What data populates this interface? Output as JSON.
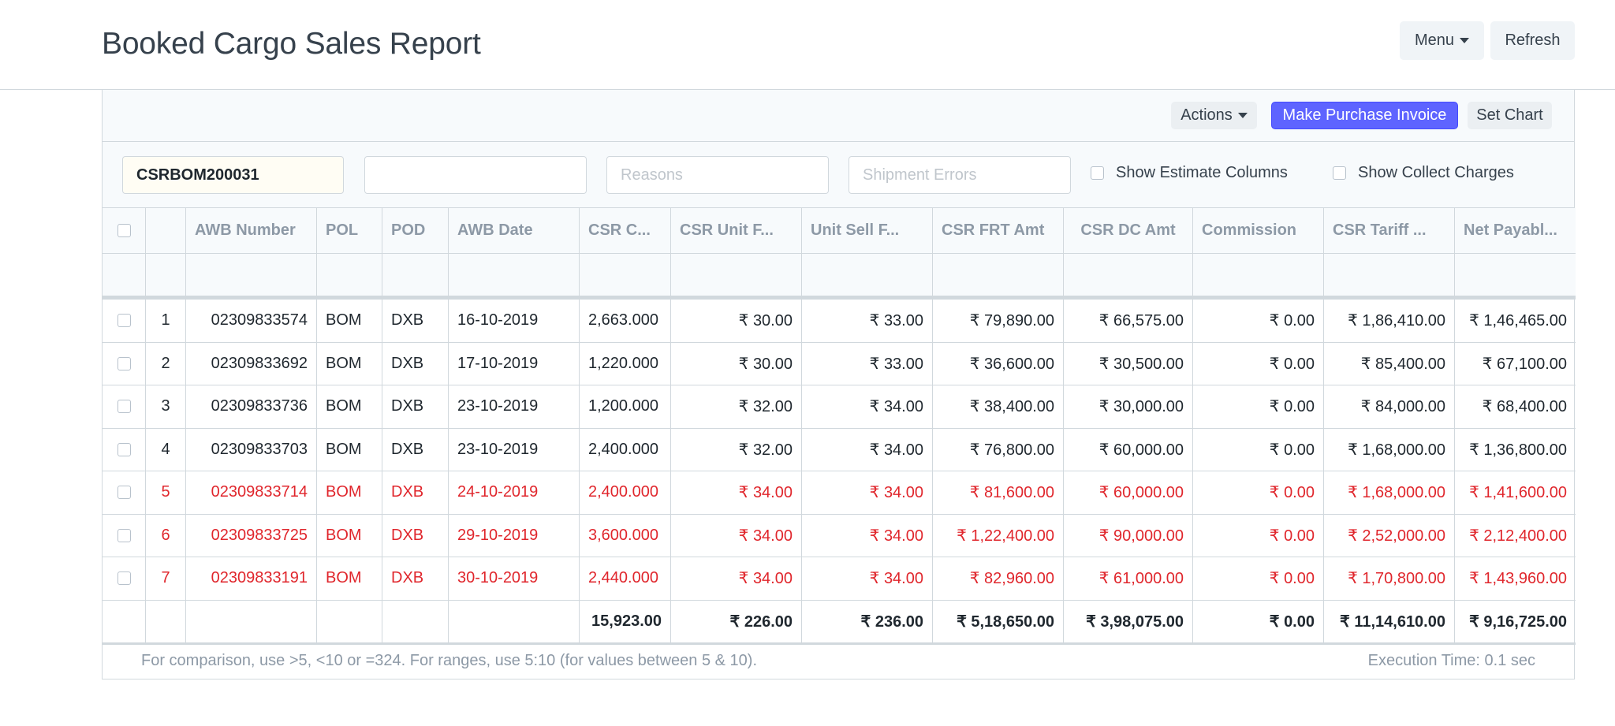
{
  "page": {
    "title": "Booked Cargo Sales Report",
    "menu_label": "Menu",
    "refresh_label": "Refresh"
  },
  "toolbar": {
    "actions_label": "Actions",
    "make_purchase_invoice_label": "Make Purchase Invoice",
    "set_chart_label": "Set Chart"
  },
  "filters": {
    "csr_value": "CSRBOM200031",
    "second_value": "",
    "reasons_placeholder": "Reasons",
    "shipment_errors_placeholder": "Shipment Errors",
    "show_estimate_columns": "Show Estimate Columns",
    "show_collect_charges": "Show Collect Charges"
  },
  "table": {
    "columns": [
      "AWB Number",
      "POL",
      "POD",
      "AWB Date",
      "CSR C...",
      "CSR Unit F...",
      "Unit Sell F...",
      "CSR FRT Amt",
      "CSR DC Amt",
      "Commission",
      "CSR Tariff ...",
      "Net Payabl..."
    ],
    "rows": [
      {
        "idx": "1",
        "red": false,
        "cells": [
          "02309833574",
          "BOM",
          "DXB",
          "16-10-2019",
          "2,663.000",
          "₹ 30.00",
          "₹ 33.00",
          "₹ 79,890.00",
          "₹ 66,575.00",
          "₹ 0.00",
          "₹ 1,86,410.00",
          "₹ 1,46,465.00"
        ]
      },
      {
        "idx": "2",
        "red": false,
        "cells": [
          "02309833692",
          "BOM",
          "DXB",
          "17-10-2019",
          "1,220.000",
          "₹ 30.00",
          "₹ 33.00",
          "₹ 36,600.00",
          "₹ 30,500.00",
          "₹ 0.00",
          "₹ 85,400.00",
          "₹ 67,100.00"
        ]
      },
      {
        "idx": "3",
        "red": false,
        "cells": [
          "02309833736",
          "BOM",
          "DXB",
          "23-10-2019",
          "1,200.000",
          "₹ 32.00",
          "₹ 34.00",
          "₹ 38,400.00",
          "₹ 30,000.00",
          "₹ 0.00",
          "₹ 84,000.00",
          "₹ 68,400.00"
        ]
      },
      {
        "idx": "4",
        "red": false,
        "cells": [
          "02309833703",
          "BOM",
          "DXB",
          "23-10-2019",
          "2,400.000",
          "₹ 32.00",
          "₹ 34.00",
          "₹ 76,800.00",
          "₹ 60,000.00",
          "₹ 0.00",
          "₹ 1,68,000.00",
          "₹ 1,36,800.00"
        ]
      },
      {
        "idx": "5",
        "red": true,
        "cells": [
          "02309833714",
          "BOM",
          "DXB",
          "24-10-2019",
          "2,400.000",
          "₹ 34.00",
          "₹ 34.00",
          "₹ 81,600.00",
          "₹ 60,000.00",
          "₹ 0.00",
          "₹ 1,68,000.00",
          "₹ 1,41,600.00"
        ]
      },
      {
        "idx": "6",
        "red": true,
        "cells": [
          "02309833725",
          "BOM",
          "DXB",
          "29-10-2019",
          "3,600.000",
          "₹ 34.00",
          "₹ 34.00",
          "₹ 1,22,400.00",
          "₹ 90,000.00",
          "₹ 0.00",
          "₹ 2,52,000.00",
          "₹ 2,12,400.00"
        ]
      },
      {
        "idx": "7",
        "red": true,
        "cells": [
          "02309833191",
          "BOM",
          "DXB",
          "30-10-2019",
          "2,440.000",
          "₹ 34.00",
          "₹ 34.00",
          "₹ 82,960.00",
          "₹ 61,000.00",
          "₹ 0.00",
          "₹ 1,70,800.00",
          "₹ 1,43,960.00"
        ]
      }
    ],
    "totals": [
      "",
      "",
      "",
      "",
      "15,923.00",
      "₹ 226.00",
      "₹ 236.00",
      "₹ 5,18,650.00",
      "₹ 3,98,075.00",
      "₹ 0.00",
      "₹ 11,14,610.00",
      "₹ 9,16,725.00"
    ]
  },
  "footer": {
    "hint": "For comparison, use >5, <10 or =324. For ranges, use 5:10 (for values between 5 & 10).",
    "execution_time": "Execution Time: 0.1 sec"
  },
  "colors": {
    "primary": "#5e64ff",
    "error_row": "#e0262c",
    "border": "#d1d8dd"
  }
}
